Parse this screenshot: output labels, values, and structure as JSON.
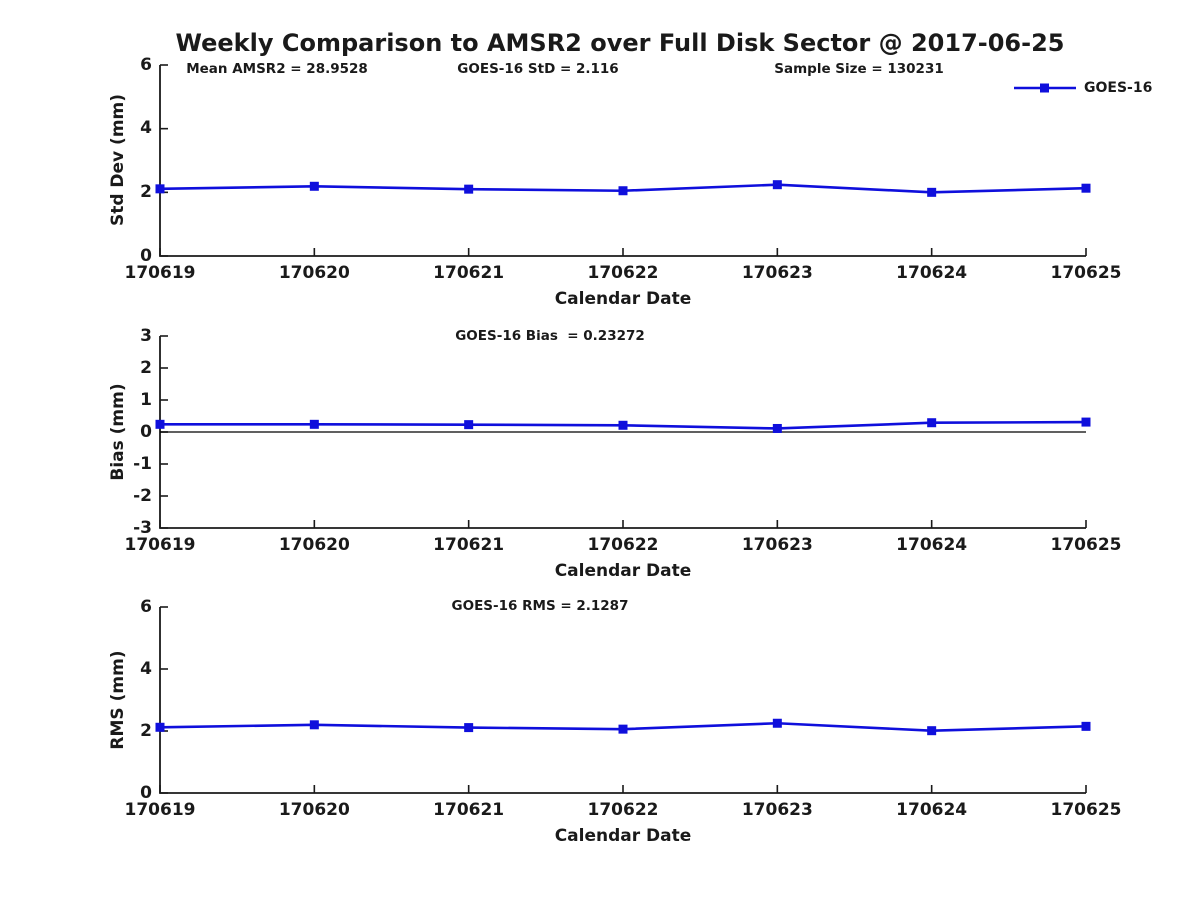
{
  "figure": {
    "title": "Weekly Comparison to AMSR2 over Full Disk Sector @ 2017-06-25",
    "legend": {
      "label": "GOES-16"
    },
    "colors": {
      "series": "#0f0fdc",
      "axis": "#1a1a1a",
      "text": "#1a1a1a",
      "zero_line": "#000000",
      "background": "#ffffff"
    }
  },
  "chart_data": [
    {
      "type": "line",
      "title": "",
      "annotations": [
        "Mean AMSR2 = 28.9528",
        "GOES-16 StD = 2.116",
        "Sample Size = 130231"
      ],
      "categories": [
        "170619",
        "170620",
        "170621",
        "170622",
        "170623",
        "170624",
        "170625"
      ],
      "series": [
        {
          "name": "GOES-16",
          "values": [
            2.11,
            2.19,
            2.1,
            2.05,
            2.24,
            2.0,
            2.13
          ]
        }
      ],
      "xlabel": "Calendar Date",
      "ylabel": "Std Dev (mm)",
      "ylim": [
        0,
        6
      ],
      "yticks": [
        0,
        2,
        4,
        6
      ],
      "grid": false,
      "legend_position": "top-right",
      "marker": "square",
      "zero_line": false
    },
    {
      "type": "line",
      "title": "",
      "annotations": [
        "GOES-16 Bias  = 0.23272"
      ],
      "categories": [
        "170619",
        "170620",
        "170621",
        "170622",
        "170623",
        "170624",
        "170625"
      ],
      "series": [
        {
          "name": "GOES-16",
          "values": [
            0.24,
            0.24,
            0.23,
            0.21,
            0.11,
            0.29,
            0.31
          ]
        }
      ],
      "xlabel": "Calendar Date",
      "ylabel": "Bias (mm)",
      "ylim": [
        -3,
        3
      ],
      "yticks": [
        -3,
        -2,
        -1,
        0,
        1,
        2,
        3
      ],
      "grid": false,
      "marker": "square",
      "zero_line": true
    },
    {
      "type": "line",
      "title": "",
      "annotations": [
        "GOES-16 RMS = 2.1287"
      ],
      "categories": [
        "170619",
        "170620",
        "170621",
        "170622",
        "170623",
        "170624",
        "170625"
      ],
      "series": [
        {
          "name": "GOES-16",
          "values": [
            2.12,
            2.2,
            2.11,
            2.06,
            2.25,
            2.01,
            2.15
          ]
        }
      ],
      "xlabel": "Calendar Date",
      "ylabel": "RMS (mm)",
      "ylim": [
        0,
        6
      ],
      "yticks": [
        0,
        2,
        4,
        6
      ],
      "grid": false,
      "marker": "square",
      "zero_line": false
    }
  ]
}
